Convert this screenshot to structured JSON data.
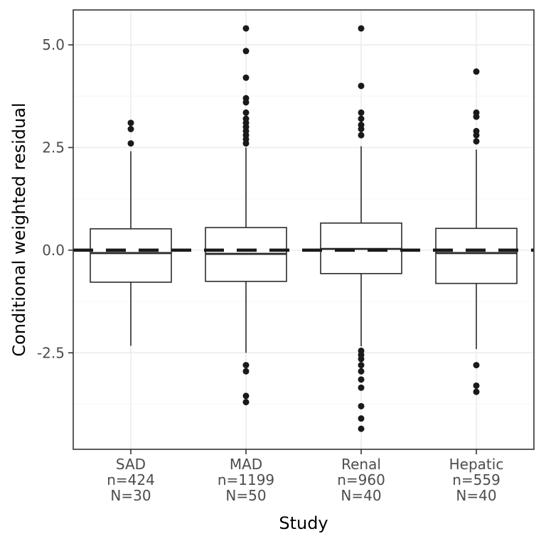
{
  "chart_data": {
    "type": "boxplot",
    "title": "",
    "xlabel": "Study",
    "ylabel": "Conditional weighted residual",
    "ylim": [
      -4.85,
      5.85
    ],
    "grid": true,
    "legend": "none",
    "y_major_ticks": [
      -2.5,
      0.0,
      2.5,
      5.0
    ],
    "y_tick_labels": [
      "-2.5",
      "0.0",
      "2.5",
      "5.0"
    ],
    "y_minor_ticks": [
      -3.75,
      -1.25,
      1.25,
      3.75
    ],
    "reference_line": {
      "y": 0,
      "style": "dashed",
      "color": "#1a1a1a",
      "width": 4.5
    },
    "categories": [
      {
        "label": "SAD",
        "n_label": "n=424",
        "N_label": "N=30"
      },
      {
        "label": "MAD",
        "n_label": "n=1199",
        "N_label": "N=50"
      },
      {
        "label": "Renal",
        "n_label": "n=960",
        "N_label": "N=40"
      },
      {
        "label": "Hepatic",
        "n_label": "n=559",
        "N_label": "N=40"
      }
    ],
    "boxes": [
      {
        "category": "SAD",
        "whisker_low": -2.33,
        "q1": -0.78,
        "median": -0.07,
        "q3": 0.52,
        "whisker_high": 2.41,
        "outliers": [
          2.6,
          2.95,
          3.1
        ]
      },
      {
        "category": "MAD",
        "whisker_low": -2.5,
        "q1": -0.76,
        "median": -0.09,
        "q3": 0.55,
        "whisker_high": 2.5,
        "outliers": [
          -3.7,
          -3.55,
          -2.95,
          -2.8,
          2.6,
          2.7,
          2.8,
          2.9,
          3.0,
          3.1,
          3.2,
          3.35,
          3.6,
          3.7,
          4.2,
          4.85,
          5.4
        ]
      },
      {
        "category": "Renal",
        "whisker_low": -2.34,
        "q1": -0.57,
        "median": 0.03,
        "q3": 0.66,
        "whisker_high": 2.53,
        "outliers": [
          -4.35,
          -4.1,
          -3.8,
          -3.35,
          -3.15,
          -2.95,
          -2.8,
          -2.65,
          -2.55,
          -2.45,
          2.8,
          2.95,
          3.05,
          3.2,
          3.35,
          4.0,
          5.4
        ]
      },
      {
        "category": "Hepatic",
        "whisker_low": -2.41,
        "q1": -0.81,
        "median": -0.07,
        "q3": 0.53,
        "whisker_high": 2.45,
        "outliers": [
          -3.45,
          -3.3,
          -2.8,
          2.65,
          2.8,
          2.9,
          3.25,
          3.35,
          4.35
        ]
      }
    ],
    "colors": {
      "box_stroke": "#2b2b2b",
      "box_fill": "#ffffff",
      "outlier": "#1a1a1a",
      "grid_major": "#ebebeb",
      "grid_minor": "#f6f6f6",
      "panel_border": "#333333",
      "axis_tick": "#333333",
      "tick_label": "#4d4d4d",
      "axis_title": "#000000"
    }
  }
}
